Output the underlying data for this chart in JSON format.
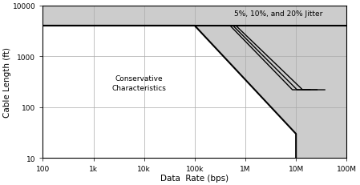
{
  "xlim": [
    100,
    100000000.0
  ],
  "ylim": [
    10,
    10000
  ],
  "xlabel": "Data  Rate (bps)",
  "ylabel": "Cable Length (ft)",
  "annotation": "Conservative\nCharacteristics",
  "jitter_label": "5%, 10%, and 20% Jitter",
  "bg_color": "#cccccc",
  "white_poly_x": [
    100,
    100000,
    10000000,
    10000000,
    100
  ],
  "white_poly_y": [
    4000,
    4000,
    30,
    10,
    10
  ],
  "cons_line_x": [
    100,
    100000,
    10000000,
    10000000
  ],
  "cons_line_y": [
    4000,
    4000,
    30,
    10
  ],
  "top_line_x": [
    100,
    100000000.0
  ],
  "top_line_y": [
    4000,
    4000
  ],
  "curve1_x": [
    500000,
    8500000,
    8500000,
    19000000
  ],
  "curve1_y": [
    4000,
    220,
    220,
    220
  ],
  "curve2_x": [
    570000,
    10500000,
    10500000,
    26000000
  ],
  "curve2_y": [
    4000,
    220,
    220,
    220
  ],
  "curve3_x": [
    650000,
    13500000,
    13500000,
    37000000
  ],
  "curve3_y": [
    4000,
    220,
    220,
    220
  ],
  "grid_color": "#aaaaaa",
  "line_color": "#000000",
  "cons_lw": 1.5,
  "curve_lw": 1.0
}
